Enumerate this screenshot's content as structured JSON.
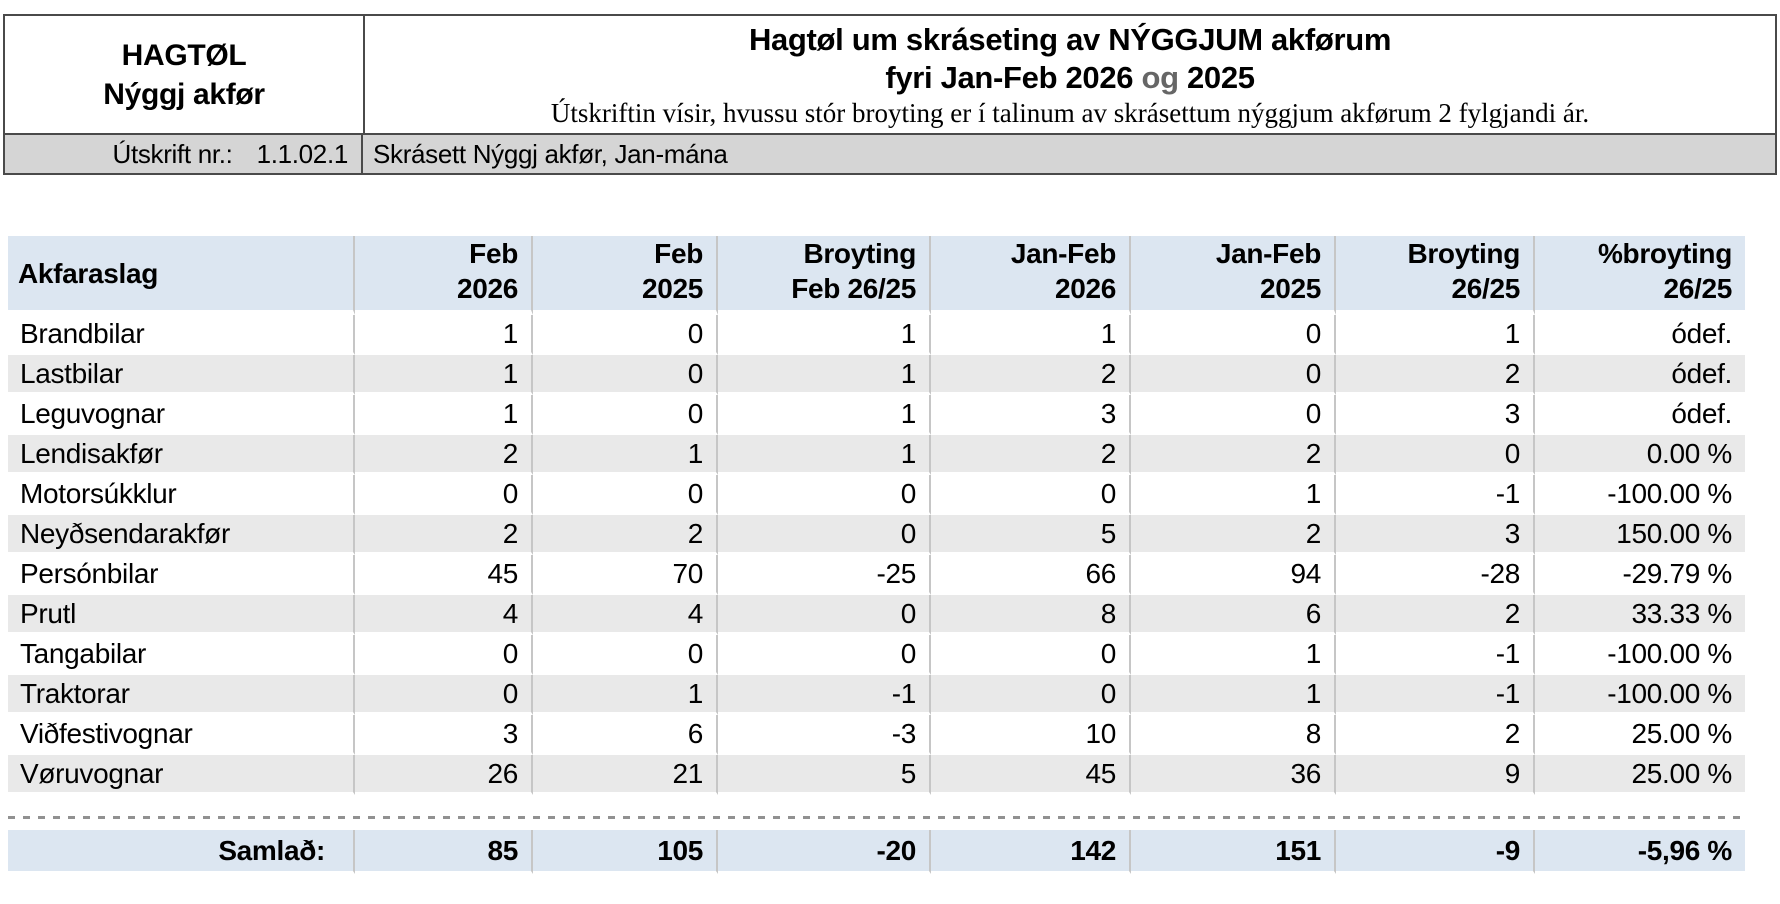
{
  "colors": {
    "header_bg": "#dce6f1",
    "stripe_bg": "#e9e9e9",
    "printbar_bg": "#d5d5d5",
    "box_border": "#4a4a4a",
    "cell_divider": "#c6c6c6",
    "dash_color": "#919191",
    "muted_text": "#666666"
  },
  "header": {
    "logo_line1": "HAGTØL",
    "logo_line2": "Nýggj akfør",
    "title": "Hagtøl um skráseting av NÝGGJUM akførum",
    "subtitle_prefix": "fyri Jan-Feb 2026",
    "subtitle_conj": "og",
    "subtitle_suffix": "2025",
    "description": "Útskriftin vísir, hvussu stór broyting er í talinum av skrásettum nýggjum akførum 2 fylgjandi ár.",
    "print_label": "Útskrift nr.:",
    "print_number": "1.1.02.1",
    "print_title": "Skrásett Nýggj akfør, Jan-mána"
  },
  "chart_data": {
    "type": "table",
    "title": "Hagtøl um skráseting av NÝGGJUM akførum fyri Jan-Feb 2026 og 2025",
    "columns": [
      {
        "line1": "Akfaraslag",
        "line2": ""
      },
      {
        "line1": "Feb",
        "line2": "2026"
      },
      {
        "line1": "Feb",
        "line2": "2025"
      },
      {
        "line1": "Broyting",
        "line2": "Feb 26/25"
      },
      {
        "line1": "Jan-Feb",
        "line2": "2026"
      },
      {
        "line1": "Jan-Feb",
        "line2": "2025"
      },
      {
        "line1": "Broyting",
        "line2": "26/25"
      },
      {
        "line1": "%broyting",
        "line2": "26/25"
      }
    ],
    "rows": [
      {
        "label": "Brandbilar",
        "values": [
          "1",
          "0",
          "1",
          "1",
          "0",
          "1",
          "ódef."
        ]
      },
      {
        "label": "Lastbilar",
        "values": [
          "1",
          "0",
          "1",
          "2",
          "0",
          "2",
          "ódef."
        ]
      },
      {
        "label": "Leguvognar",
        "values": [
          "1",
          "0",
          "1",
          "3",
          "0",
          "3",
          "ódef."
        ]
      },
      {
        "label": "Lendisakfør",
        "values": [
          "2",
          "1",
          "1",
          "2",
          "2",
          "0",
          "0.00 %"
        ]
      },
      {
        "label": "Motorsúkklur",
        "values": [
          "0",
          "0",
          "0",
          "0",
          "1",
          "-1",
          "-100.00 %"
        ]
      },
      {
        "label": "Neyðsendarakfør",
        "values": [
          "2",
          "2",
          "0",
          "5",
          "2",
          "3",
          "150.00 %"
        ]
      },
      {
        "label": "Persónbilar",
        "values": [
          "45",
          "70",
          "-25",
          "66",
          "94",
          "-28",
          "-29.79 %"
        ]
      },
      {
        "label": "Prutl",
        "values": [
          "4",
          "4",
          "0",
          "8",
          "6",
          "2",
          "33.33 %"
        ]
      },
      {
        "label": "Tangabilar",
        "values": [
          "0",
          "0",
          "0",
          "0",
          "1",
          "-1",
          "-100.00 %"
        ]
      },
      {
        "label": "Traktorar",
        "values": [
          "0",
          "1",
          "-1",
          "0",
          "1",
          "-1",
          "-100.00 %"
        ]
      },
      {
        "label": "Viðfestivognar",
        "values": [
          "3",
          "6",
          "-3",
          "10",
          "8",
          "2",
          "25.00 %"
        ]
      },
      {
        "label": "Vøruvognar",
        "values": [
          "26",
          "21",
          "5",
          "45",
          "36",
          "9",
          "25.00 %"
        ]
      }
    ],
    "total": {
      "label": "Samlað:",
      "values": [
        "85",
        "105",
        "-20",
        "142",
        "151",
        "-9",
        "-5,96 %"
      ]
    }
  }
}
